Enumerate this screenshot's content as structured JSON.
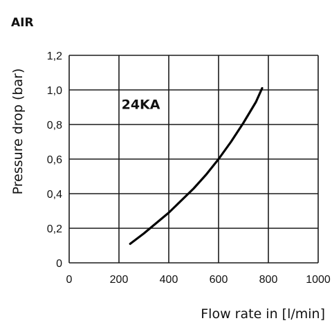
{
  "chart_data": {
    "type": "line",
    "heading": "AIR",
    "xlabel": "Flow rate in [l/min]",
    "ylabel": "Pressure drop (bar)",
    "xlim": [
      0,
      1000
    ],
    "ylim": [
      0,
      1.2
    ],
    "x_ticks": [
      "0",
      "200",
      "400",
      "600",
      "800",
      "1000"
    ],
    "y_ticks": [
      "0",
      "0,2",
      "0,4",
      "0,6",
      "0,8",
      "1,0",
      "1,2"
    ],
    "grid": true,
    "series": [
      {
        "name": "24KA",
        "x": [
          245,
          300,
          350,
          400,
          450,
          500,
          550,
          600,
          650,
          700,
          750,
          775
        ],
        "y": [
          0.11,
          0.17,
          0.23,
          0.29,
          0.36,
          0.43,
          0.51,
          0.6,
          0.7,
          0.81,
          0.93,
          1.01
        ]
      }
    ]
  }
}
